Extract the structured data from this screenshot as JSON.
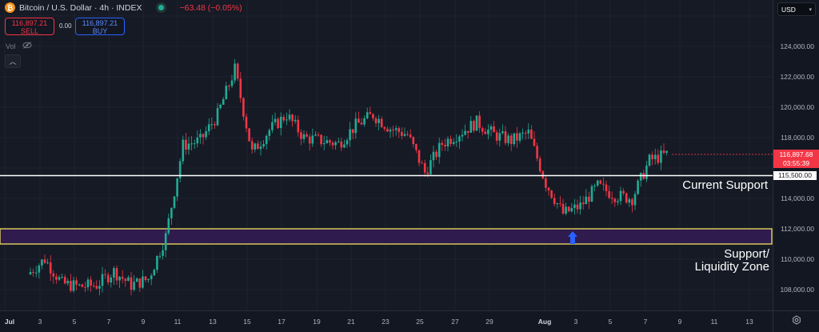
{
  "header": {
    "symbol_icon": "bitcoin-icon",
    "title": "Bitcoin / U.S. Dollar · 4h · INDEX",
    "market_status": "market-open-dot",
    "change": "−63.48 (−0.05%)",
    "sell_price": "116,897.21",
    "sell_label": "SELL",
    "spread": "0.00",
    "buy_price": "116,897.21",
    "buy_label": "BUY",
    "vol_label": "Vol",
    "vol_icon": "eye-off-icon",
    "collapse_icon": "chevron-up-icon"
  },
  "price_axis": {
    "currency": "USD",
    "labels": [
      "124,000.00",
      "122,000.00",
      "120,000.00",
      "118,000.00",
      "116,000.00",
      "114,000.00",
      "112,000.00",
      "110,000.00",
      "108,000.00"
    ],
    "last_price": "116,897.68",
    "countdown": "03:55:39",
    "support_price": "115,500.00"
  },
  "time_axis": {
    "labels": [
      "Jul",
      "3",
      "5",
      "7",
      "9",
      "11",
      "13",
      "15",
      "17",
      "19",
      "21",
      "23",
      "25",
      "27",
      "29",
      "Aug",
      "3",
      "5",
      "7",
      "9",
      "11",
      "13"
    ],
    "settings_icon": "gear-icon"
  },
  "annotations": {
    "current_support": "Current Support",
    "zone_line1": "Support/",
    "zone_line2": "Liquidity Zone"
  },
  "colors": {
    "up": "#22ab94",
    "down": "#f23645",
    "zone_fill": "#2f1b4e",
    "zone_border": "#f2e05f",
    "support_line": "#ffffff",
    "arrow": "#2962ff"
  },
  "chart_data": {
    "type": "candlestick",
    "title": "Bitcoin / U.S. Dollar · 4h · INDEX",
    "xlabel": "",
    "ylabel": "USD",
    "ylim": [
      107000,
      125000
    ],
    "x_ticks": [
      "Jul",
      "3",
      "5",
      "7",
      "9",
      "11",
      "13",
      "15",
      "17",
      "19",
      "21",
      "23",
      "25",
      "27",
      "29",
      "Aug",
      "3",
      "5",
      "7",
      "9",
      "11",
      "13"
    ],
    "y_ticks": [
      108000,
      110000,
      112000,
      114000,
      116000,
      118000,
      120000,
      122000,
      124000
    ],
    "horizontal_line": {
      "price": 115500,
      "label": "Current Support"
    },
    "zone": {
      "low": 111000,
      "high": 112000,
      "label": "Support/ Liquidity Zone"
    },
    "arrow_marker": {
      "date": "Aug 3",
      "price": 111000,
      "direction": "up"
    },
    "last_price": 116897.68,
    "series_closes_approx": [
      {
        "date": "Jul 2",
        "close": 109000
      },
      {
        "date": "Jul 3",
        "close": 110000
      },
      {
        "date": "Jul 4",
        "close": 108400
      },
      {
        "date": "Jul 5",
        "close": 108200
      },
      {
        "date": "Jul 6",
        "close": 108300
      },
      {
        "date": "Jul 7",
        "close": 109200
      },
      {
        "date": "Jul 8",
        "close": 108300
      },
      {
        "date": "Jul 9",
        "close": 108700
      },
      {
        "date": "Jul 10",
        "close": 111500
      },
      {
        "date": "Jul 11",
        "close": 117500
      },
      {
        "date": "Jul 12",
        "close": 117800
      },
      {
        "date": "Jul 13",
        "close": 119500
      },
      {
        "date": "Jul 14",
        "close": 122500
      },
      {
        "date": "Jul 15",
        "close": 117000
      },
      {
        "date": "Jul 16",
        "close": 118500
      },
      {
        "date": "Jul 17",
        "close": 119500
      },
      {
        "date": "Jul 18",
        "close": 118000
      },
      {
        "date": "Jul 19",
        "close": 117800
      },
      {
        "date": "Jul 20",
        "close": 117600
      },
      {
        "date": "Jul 21",
        "close": 118800
      },
      {
        "date": "Jul 22",
        "close": 119500
      },
      {
        "date": "Jul 23",
        "close": 118600
      },
      {
        "date": "Jul 24",
        "close": 118200
      },
      {
        "date": "Jul 25",
        "close": 115700
      },
      {
        "date": "Jul 26",
        "close": 117600
      },
      {
        "date": "Jul 27",
        "close": 118300
      },
      {
        "date": "Jul 28",
        "close": 119000
      },
      {
        "date": "Jul 29",
        "close": 118200
      },
      {
        "date": "Jul 30",
        "close": 117800
      },
      {
        "date": "Jul 31",
        "close": 118300
      },
      {
        "date": "Aug 1",
        "close": 115000
      },
      {
        "date": "Aug 2",
        "close": 113000
      },
      {
        "date": "Aug 3",
        "close": 113500
      },
      {
        "date": "Aug 4",
        "close": 114800
      },
      {
        "date": "Aug 5",
        "close": 114200
      },
      {
        "date": "Aug 6",
        "close": 114000
      },
      {
        "date": "Aug 7",
        "close": 116500
      },
      {
        "date": "Aug 8",
        "close": 116900
      }
    ]
  }
}
